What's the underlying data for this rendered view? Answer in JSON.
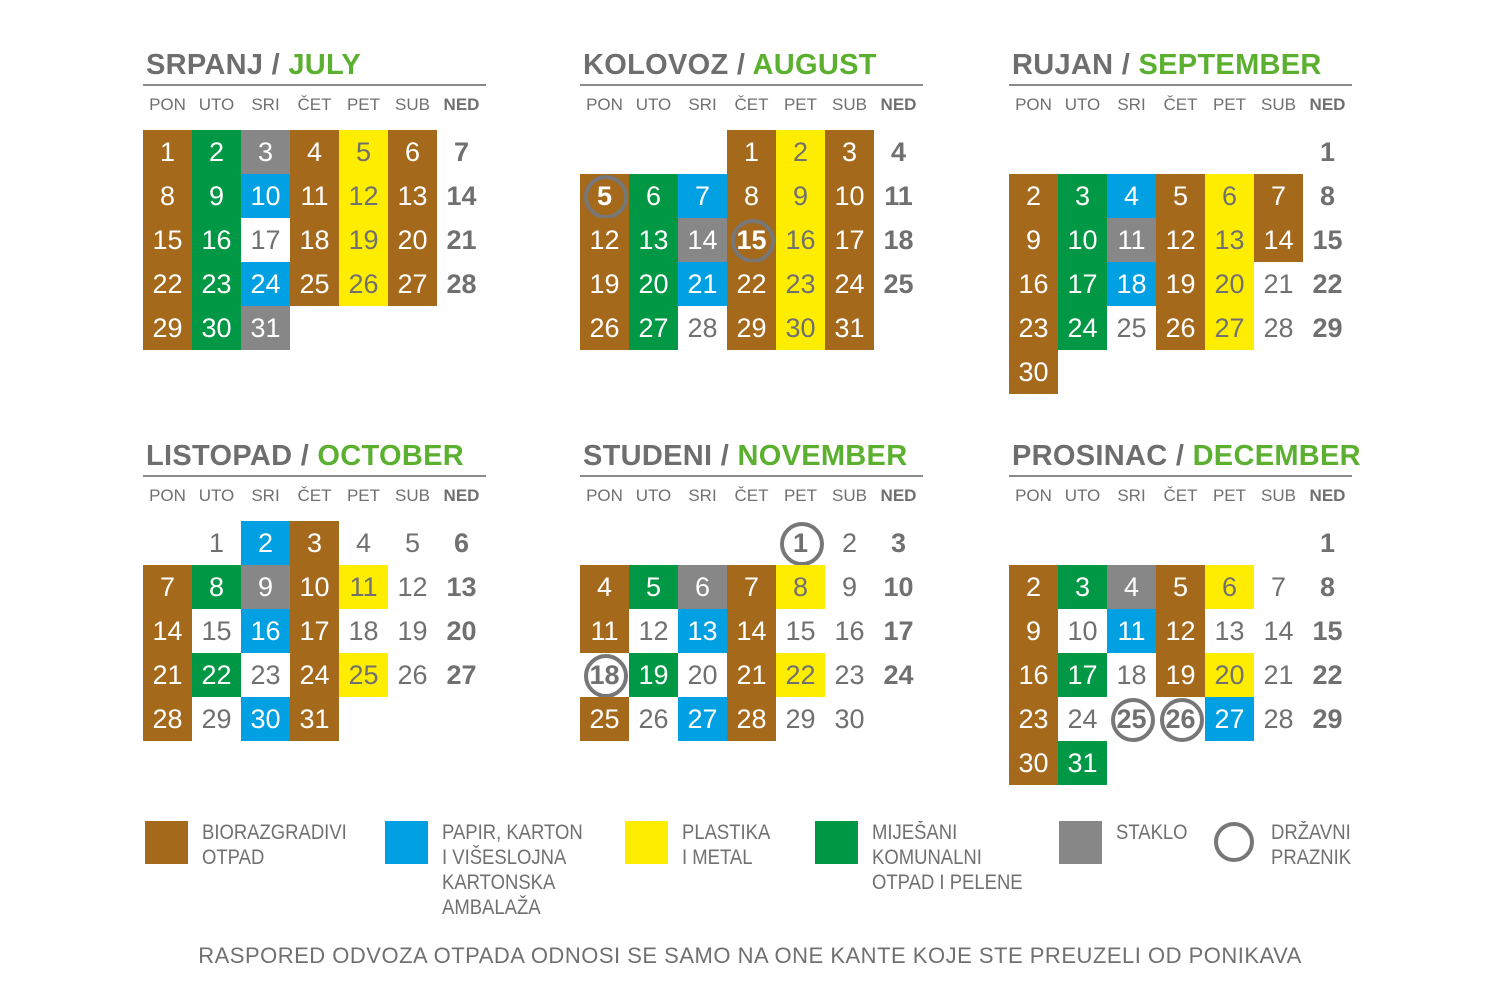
{
  "colors": {
    "b": "#a5691c",
    "g": "#009845",
    "u": "#00a0e3",
    "y": "#ffed00",
    "s": "#878787",
    "w": "#ffffff"
  },
  "weekdays": [
    "PON",
    "UTO",
    "SRI",
    "ČET",
    "PET",
    "SUB",
    "NED"
  ],
  "months": [
    {
      "hr": "SRPANJ",
      "en": "JULY",
      "start": 0,
      "days": "bgsbybx bgubybx bgwbybx bgubybx bgs",
      "holidays": []
    },
    {
      "hr": "KOLOVOZ",
      "en": "AUGUST",
      "start": 3,
      "days": "bybx bgubybx bgsbybx bgubybx bgwbyb",
      "holidays": [
        5,
        15
      ]
    },
    {
      "hr": "RUJAN",
      "en": "SEPTEMBER",
      "start": 6,
      "days": "x bgubybx bgsbybx bguhywx bgwbywx b",
      "holidays": []
    },
    {
      "hr": "LISTOPAD",
      "en": "OCTOBER",
      "start": 1,
      "days": "wubwwx bgsbywx bwubwwx bgwbywx bwub",
      "holidays": []
    },
    {
      "hr": "STUDENI",
      "en": "NOVEMBER",
      "start": 4,
      "days": "wwx bgsbywx bwubwwx wgwbywx bwubww",
      "holidays": [
        1,
        18
      ]
    },
    {
      "hr": "PROSINAC",
      "en": "DECEMBER",
      "start": 6,
      "days": "x bgsbywx bwubwwx bgwbywx bwwwuwx bg",
      "holidays": [
        25,
        26
      ]
    }
  ],
  "legend": [
    {
      "color": "b",
      "label": "BIORAZGRADIVI\nOTPAD"
    },
    {
      "color": "u",
      "label": "PAPIR, KARTON\nI VIŠESLOJNA\nKARTONSKA\nAMBALAŽA"
    },
    {
      "color": "y",
      "label": "PLASTIKA\nI METAL"
    },
    {
      "color": "g",
      "label": "MIJEŠANI\nKOMUNALNI\nOTPAD I PELENE"
    },
    {
      "color": "s",
      "label": "STAKLO"
    },
    {
      "color": "circle",
      "label": "DRŽAVNI\nPRAZNIK"
    }
  ],
  "footer": "RASPORED ODVOZA OTPADA ODNOSI SE SAMO NA ONE KANTE KOJE STE PREUZELI OD PONIKAVA"
}
